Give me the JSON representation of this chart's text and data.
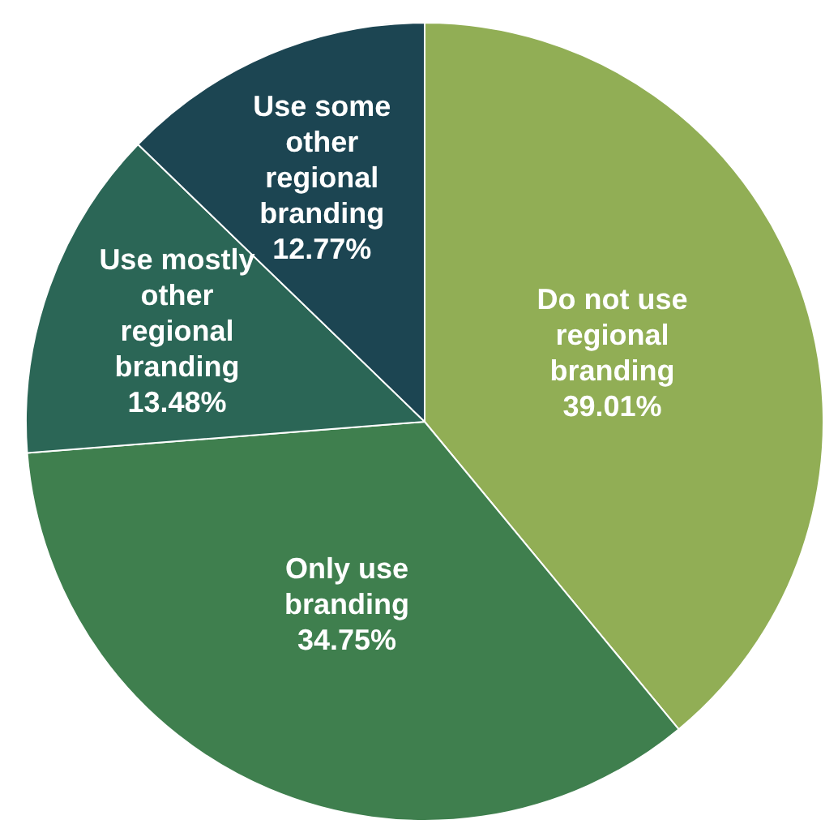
{
  "chart_data": {
    "type": "pie",
    "categories": [
      "Do not use regional branding",
      "Only use branding",
      "Use mostly other regional branding",
      "Use some other regional branding"
    ],
    "values": [
      39.01,
      34.75,
      13.48,
      12.77
    ],
    "value_labels": [
      "39.01%",
      "34.75%",
      "13.48%",
      "12.77%"
    ],
    "colors": [
      "#91ae55",
      "#3f7f4e",
      "#2b6656",
      "#1c4552"
    ]
  }
}
